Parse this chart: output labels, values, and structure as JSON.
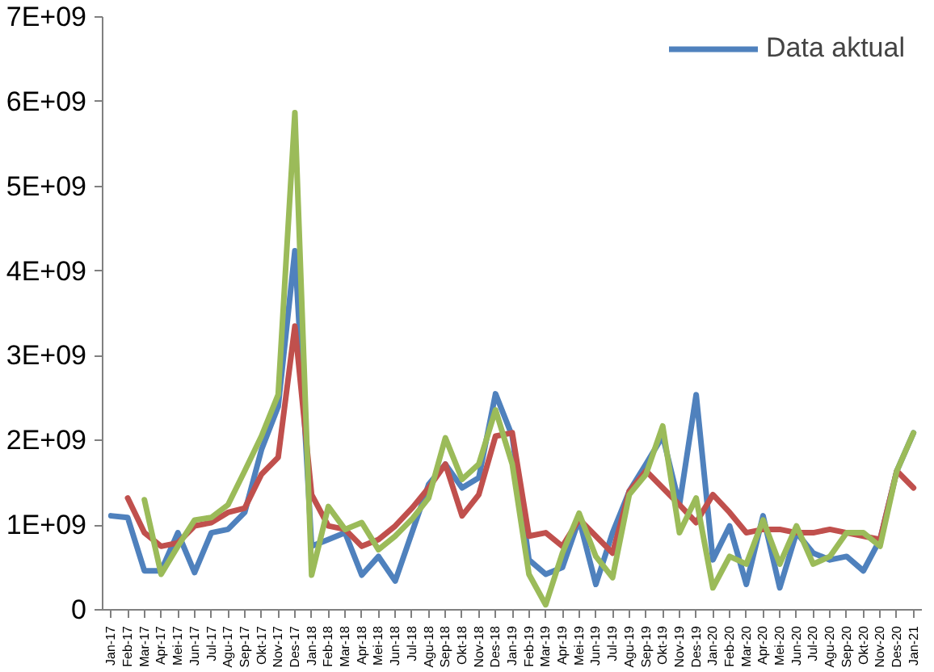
{
  "chart_data": {
    "type": "line",
    "categories": [
      "Jan-17",
      "Feb-17",
      "Mar-17",
      "Apr-17",
      "Mei-17",
      "Jun-17",
      "Jul-17",
      "Agu-17",
      "Sep-17",
      "Okt-17",
      "Nov-17",
      "Des-17",
      "Jan-18",
      "Feb-18",
      "Mar-18",
      "Apr-18",
      "Mei-18",
      "Jun-18",
      "Jul-18",
      "Agu-18",
      "Sep-18",
      "Okt-18",
      "Nov-18",
      "Des-18",
      "Jan-19",
      "Feb-19",
      "Mar-19",
      "Apr-19",
      "Mei-19",
      "Jun-19",
      "Jul-19",
      "Agu-19",
      "Sep-19",
      "Okt-19",
      "Nov-19",
      "Des-19",
      "Jan-20",
      "Feb-20",
      "Mar-20",
      "Apr-20",
      "Mei-20",
      "Jun-20",
      "Jul-20",
      "Agu-20",
      "Sep-20",
      "Okt-20",
      "Nov-20",
      "Des-20",
      "Jan-21"
    ],
    "series": [
      {
        "name": "Data aktual",
        "color": "#4f81bd",
        "values": [
          1110000000.0,
          1090000000.0,
          460000000.0,
          460000000.0,
          910000000.0,
          440000000.0,
          910000000.0,
          950000000.0,
          1150000000.0,
          1890000000.0,
          2400000000.0,
          4240000000.0,
          750000000.0,
          830000000.0,
          910000000.0,
          410000000.0,
          630000000.0,
          340000000.0,
          910000000.0,
          1480000000.0,
          1720000000.0,
          1440000000.0,
          1560000000.0,
          2550000000.0,
          2050000000.0,
          590000000.0,
          420000000.0,
          500000000.0,
          1070000000.0,
          300000000.0,
          910000000.0,
          1400000000.0,
          1720000000.0,
          2050000000.0,
          1240000000.0,
          2540000000.0,
          590000000.0,
          990000000.0,
          300000000.0,
          1110000000.0,
          260000000.0,
          910000000.0,
          670000000.0,
          590000000.0,
          630000000.0,
          460000000.0,
          830000000.0,
          1640000000.0,
          2090000000.0
        ]
      },
      {
        "color": "#c0504d",
        "values": [
          null,
          1320000000.0,
          910000000.0,
          750000000.0,
          790000000.0,
          990000000.0,
          1030000000.0,
          1150000000.0,
          1200000000.0,
          1600000000.0,
          1800000000.0,
          3350000000.0,
          1360000000.0,
          990000000.0,
          950000000.0,
          750000000.0,
          830000000.0,
          990000000.0,
          1200000000.0,
          1440000000.0,
          1720000000.0,
          1110000000.0,
          1360000000.0,
          2050000000.0,
          2090000000.0,
          870000000.0,
          910000000.0,
          750000000.0,
          1070000000.0,
          870000000.0,
          670000000.0,
          1400000000.0,
          1640000000.0,
          1440000000.0,
          1240000000.0,
          1030000000.0,
          1360000000.0,
          1150000000.0,
          910000000.0,
          950000000.0,
          950000000.0,
          910000000.0,
          910000000.0,
          950000000.0,
          910000000.0,
          870000000.0,
          830000000.0,
          1640000000.0,
          1440000000.0
        ]
      },
      {
        "color": "#9bbb59",
        "values": [
          null,
          null,
          1300000000.0,
          420000000.0,
          750000000.0,
          1060000000.0,
          1090000000.0,
          1240000000.0,
          1640000000.0,
          2050000000.0,
          2540000000.0,
          5870000000.0,
          410000000.0,
          1220000000.0,
          950000000.0,
          1030000000.0,
          710000000.0,
          870000000.0,
          1070000000.0,
          1320000000.0,
          2030000000.0,
          1540000000.0,
          1720000000.0,
          2360000000.0,
          1720000000.0,
          420000000.0,
          60000000.0,
          670000000.0,
          1140000000.0,
          630000000.0,
          380000000.0,
          1360000000.0,
          1600000000.0,
          2170000000.0,
          910000000.0,
          1320000000.0,
          260000000.0,
          630000000.0,
          540000000.0,
          1060000000.0,
          540000000.0,
          990000000.0,
          540000000.0,
          630000000.0,
          910000000.0,
          910000000.0,
          750000000.0,
          1640000000.0,
          2090000000.0
        ]
      }
    ],
    "ylim": [
      0,
      7000000000.0
    ],
    "yticks": [
      0,
      {
        "value": 1000000000.0,
        "label": "1E+09"
      },
      {
        "value": 2000000000.0,
        "label": "2E+09"
      },
      {
        "value": 3000000000.0,
        "label": "3E+09"
      },
      {
        "value": 4000000000.0,
        "label": "4E+09"
      },
      {
        "value": 5000000000.0,
        "label": "5E+09"
      },
      {
        "value": 6000000000.0,
        "label": "6E+09"
      },
      {
        "value": 7000000000.0,
        "label": "7E+09"
      }
    ],
    "grid": false,
    "legend": "top right",
    "line_style": "solid",
    "marker": "none"
  }
}
